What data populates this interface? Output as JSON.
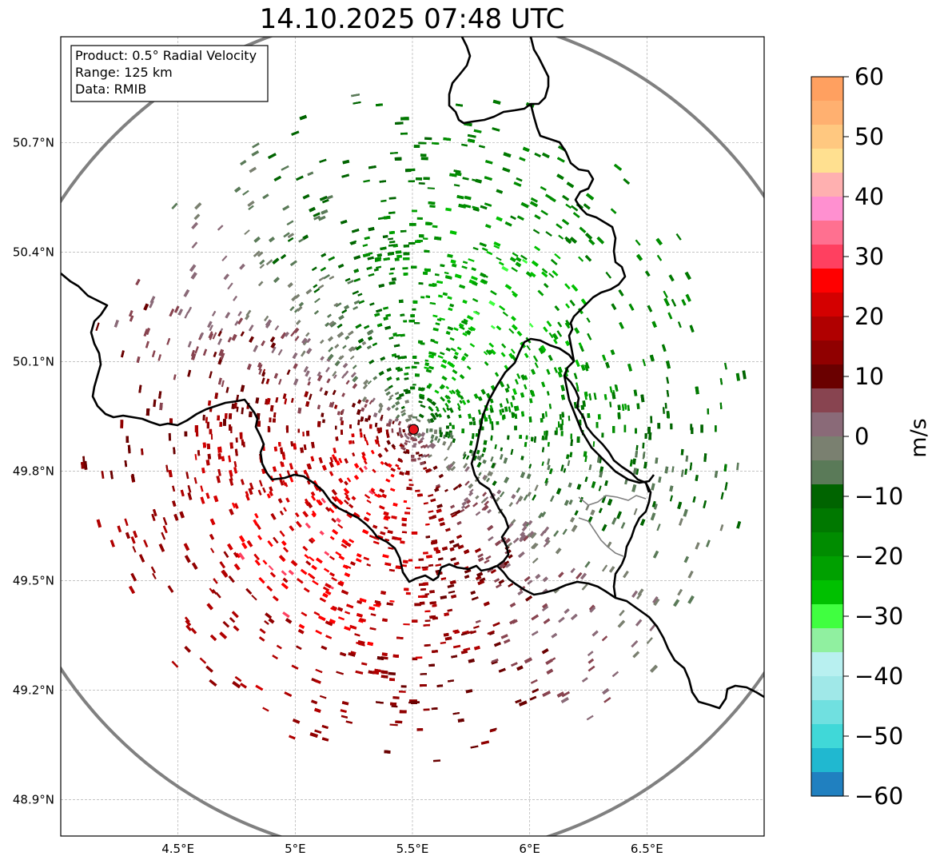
{
  "title": "14.10.2025 07:48 UTC",
  "info_box": {
    "product": "Product: 0.5° Radial Velocity",
    "range": "Range: 125 km",
    "source": "Data: RMIB"
  },
  "lon_ticks": [
    {
      "value": 4.5,
      "label": "4.5°E"
    },
    {
      "value": 5.0,
      "label": "5°E"
    },
    {
      "value": 5.5,
      "label": "5.5°E"
    },
    {
      "value": 6.0,
      "label": "6°E"
    },
    {
      "value": 6.5,
      "label": "6.5°E"
    }
  ],
  "lat_ticks": [
    {
      "value": 50.7,
      "label": "50.7°N"
    },
    {
      "value": 50.4,
      "label": "50.4°N"
    },
    {
      "value": 50.1,
      "label": "50.1°N"
    },
    {
      "value": 49.8,
      "label": "49.8°N"
    },
    {
      "value": 49.5,
      "label": "49.5°N"
    },
    {
      "value": 49.2,
      "label": "49.2°N"
    },
    {
      "value": 48.9,
      "label": "48.9°N"
    }
  ],
  "map_extent": {
    "lon_min": 4.0,
    "lon_max": 7.0,
    "lat_min": 48.8,
    "lat_max": 50.99
  },
  "radar_site": {
    "lon": 5.505,
    "lat": 49.914,
    "color": "#e8141c"
  },
  "range_ring_color": "#808080",
  "colorbar": {
    "label": "m/s",
    "min": -60,
    "max": 60,
    "ticks": [
      {
        "value": 60,
        "label": "60"
      },
      {
        "value": 50,
        "label": "50"
      },
      {
        "value": 40,
        "label": "40"
      },
      {
        "value": 30,
        "label": "30"
      },
      {
        "value": 20,
        "label": "20"
      },
      {
        "value": 10,
        "label": "10"
      },
      {
        "value": 0,
        "label": "0"
      },
      {
        "value": -10,
        "label": "−10"
      },
      {
        "value": -20,
        "label": "−20"
      },
      {
        "value": -30,
        "label": "−30"
      },
      {
        "value": -40,
        "label": "−40"
      },
      {
        "value": -50,
        "label": "−50"
      },
      {
        "value": -60,
        "label": "−60"
      }
    ],
    "stops": [
      {
        "from": 56,
        "to": 60,
        "color": "#ffa060"
      },
      {
        "from": 52,
        "to": 56,
        "color": "#ffb070"
      },
      {
        "from": 48,
        "to": 52,
        "color": "#ffc880"
      },
      {
        "from": 44,
        "to": 48,
        "color": "#ffe090"
      },
      {
        "from": 40,
        "to": 44,
        "color": "#ffb0b0"
      },
      {
        "from": 36,
        "to": 40,
        "color": "#ff90d0"
      },
      {
        "from": 32,
        "to": 36,
        "color": "#ff7090"
      },
      {
        "from": 28,
        "to": 32,
        "color": "#ff4060"
      },
      {
        "from": 24,
        "to": 28,
        "color": "#ff0000"
      },
      {
        "from": 20,
        "to": 24,
        "color": "#d40000"
      },
      {
        "from": 16,
        "to": 20,
        "color": "#b00000"
      },
      {
        "from": 12,
        "to": 16,
        "color": "#900000"
      },
      {
        "from": 8,
        "to": 12,
        "color": "#6a0000"
      },
      {
        "from": 4,
        "to": 8,
        "color": "#884450"
      },
      {
        "from": 0,
        "to": 4,
        "color": "#8a6a78"
      },
      {
        "from": -4,
        "to": 0,
        "color": "#7a8070"
      },
      {
        "from": -8,
        "to": -4,
        "color": "#5a7a58"
      },
      {
        "from": -12,
        "to": -8,
        "color": "#006400"
      },
      {
        "from": -16,
        "to": -12,
        "color": "#007800"
      },
      {
        "from": -20,
        "to": -16,
        "color": "#008c00"
      },
      {
        "from": -24,
        "to": -20,
        "color": "#00a000"
      },
      {
        "from": -28,
        "to": -24,
        "color": "#00c000"
      },
      {
        "from": -32,
        "to": -28,
        "color": "#40ff40"
      },
      {
        "from": -36,
        "to": -32,
        "color": "#90f0a0"
      },
      {
        "from": -40,
        "to": -36,
        "color": "#b8f0f0"
      },
      {
        "from": -44,
        "to": -40,
        "color": "#a0e8e8"
      },
      {
        "from": -48,
        "to": -44,
        "color": "#70e0e0"
      },
      {
        "from": -52,
        "to": -48,
        "color": "#40d8d8"
      },
      {
        "from": -56,
        "to": -52,
        "color": "#20b8d0"
      },
      {
        "from": -60,
        "to": -56,
        "color": "#2080c0"
      }
    ]
  }
}
